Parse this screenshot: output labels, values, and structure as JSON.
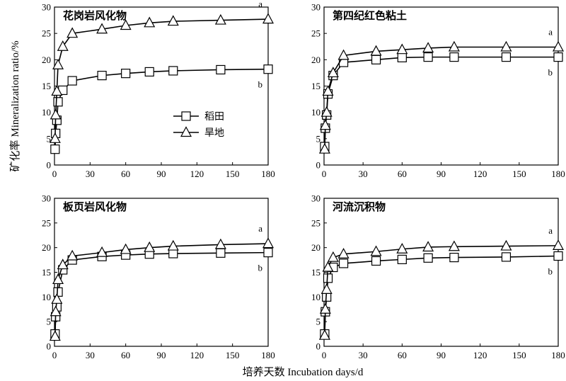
{
  "axes_common": {
    "xticks": [
      0,
      30,
      60,
      90,
      120,
      150,
      180
    ],
    "yticks": [
      0,
      5,
      10,
      15,
      20,
      25,
      30
    ],
    "xlim": [
      0,
      180
    ],
    "ylim": [
      0,
      30
    ]
  },
  "xlabel": "培养天数 Incubation days/d",
  "ylabel_cn": "矿化率",
  "ylabel_en": "Mineralization ratio/%",
  "legend": {
    "placement": "inside first panel, middle-right",
    "items": [
      {
        "label": "稻田",
        "marker": "square"
      },
      {
        "label": "旱地",
        "marker": "triangle"
      }
    ]
  },
  "chart_data": [
    {
      "type": "line",
      "title": "花岗岩风化物",
      "xlim": [
        0,
        180
      ],
      "ylim": [
        0,
        30
      ],
      "series": [
        {
          "name": "稻田",
          "marker": "square",
          "label": "b",
          "x": [
            0.5,
            1,
            2,
            3,
            7,
            15,
            40,
            60,
            80,
            100,
            140,
            180
          ],
          "y": [
            3,
            6,
            8.5,
            12,
            14.2,
            16,
            17,
            17.4,
            17.7,
            17.9,
            18.1,
            18.2
          ]
        },
        {
          "name": "旱地",
          "marker": "triangle",
          "label": "a",
          "x": [
            0.5,
            1,
            2,
            3,
            7,
            15,
            40,
            60,
            80,
            100,
            140,
            180
          ],
          "y": [
            5,
            9.5,
            14,
            19,
            22.5,
            25,
            25.8,
            26.5,
            27,
            27.3,
            27.5,
            27.7
          ]
        }
      ]
    },
    {
      "type": "line",
      "title": "第四纪红色粘土",
      "xlim": [
        0,
        180
      ],
      "ylim": [
        0,
        30
      ],
      "series": [
        {
          "name": "稻田",
          "marker": "square",
          "label": "b",
          "x": [
            0.5,
            1,
            2,
            3,
            7,
            15,
            40,
            60,
            80,
            100,
            140,
            180
          ],
          "y": [
            3.5,
            7,
            9.5,
            13.5,
            17,
            19.5,
            20,
            20.4,
            20.5,
            20.5,
            20.5,
            20.5
          ]
        },
        {
          "name": "旱地",
          "marker": "triangle",
          "label": "a",
          "x": [
            0.5,
            1,
            2,
            3,
            7,
            15,
            40,
            60,
            80,
            100,
            140,
            180
          ],
          "y": [
            3,
            7.5,
            10,
            14,
            17.5,
            20.8,
            21.6,
            21.9,
            22.2,
            22.4,
            22.4,
            22.4
          ]
        }
      ]
    },
    {
      "type": "line",
      "title": "板页岩风化物",
      "xlim": [
        0,
        180
      ],
      "ylim": [
        0,
        30
      ],
      "series": [
        {
          "name": "稻田",
          "marker": "square",
          "label": "b",
          "x": [
            0.5,
            1,
            2,
            3,
            7,
            15,
            40,
            60,
            80,
            100,
            140,
            180
          ],
          "y": [
            2.5,
            6,
            8,
            11,
            15.5,
            17.5,
            18.2,
            18.5,
            18.7,
            18.8,
            18.9,
            19
          ]
        },
        {
          "name": "旱地",
          "marker": "triangle",
          "label": "a",
          "x": [
            0.5,
            1,
            2,
            3,
            7,
            15,
            40,
            60,
            80,
            100,
            140,
            180
          ],
          "y": [
            2,
            7,
            9.5,
            13.5,
            16.5,
            18.3,
            19,
            19.6,
            20,
            20.3,
            20.6,
            20.8
          ]
        }
      ]
    },
    {
      "type": "line",
      "title": "河流沉积物",
      "xlim": [
        0,
        180
      ],
      "ylim": [
        0,
        30
      ],
      "series": [
        {
          "name": "稻田",
          "marker": "square",
          "label": "b",
          "x": [
            0.5,
            1,
            2,
            3,
            7,
            15,
            40,
            60,
            80,
            100,
            140,
            180
          ],
          "y": [
            2.5,
            7,
            10,
            13.8,
            16,
            16.8,
            17.3,
            17.6,
            17.9,
            18,
            18.1,
            18.3
          ]
        },
        {
          "name": "旱地",
          "marker": "triangle",
          "label": "a",
          "x": [
            0.5,
            1,
            2,
            3,
            7,
            15,
            40,
            60,
            80,
            100,
            140,
            180
          ],
          "y": [
            2.2,
            7.5,
            11.5,
            16,
            18,
            18.7,
            19.2,
            19.7,
            20.1,
            20.2,
            20.3,
            20.4
          ]
        }
      ]
    }
  ]
}
